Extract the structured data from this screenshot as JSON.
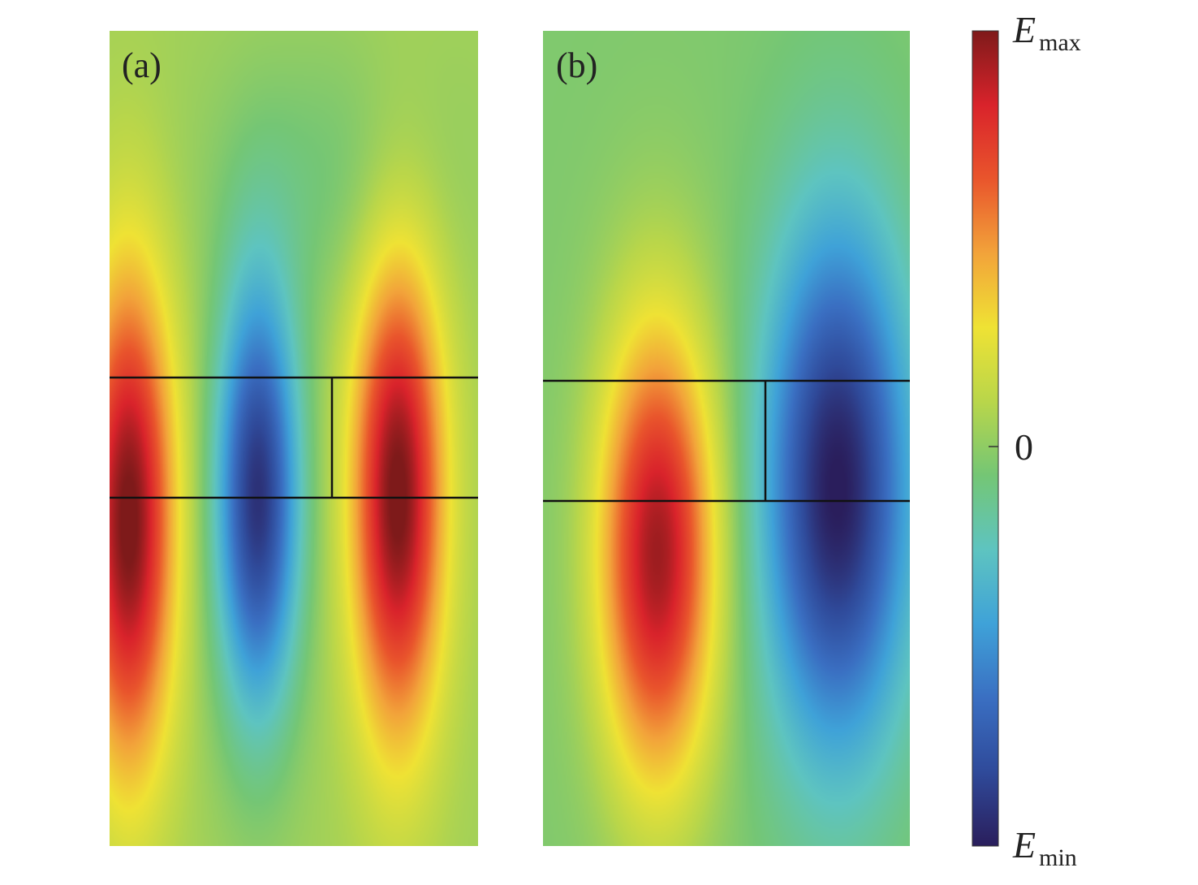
{
  "chart_data": {
    "type": "heatmap",
    "title": "",
    "quantity": "E",
    "colormap": [
      "#2a1e5c",
      "#2f4a9a",
      "#3a6fc2",
      "#3fa2d8",
      "#5ec4c0",
      "#74c675",
      "#b9d64a",
      "#efe234",
      "#f2a33a",
      "#e9552c",
      "#d9232b",
      "#7e1a1a"
    ],
    "colorbar": {
      "ticks": [
        {
          "label_main": "E",
          "label_sub": "max",
          "value": "E_max"
        },
        {
          "label_main": "0",
          "label_sub": "",
          "value": 0
        },
        {
          "label_main": "E",
          "label_sub": "min",
          "value": "E_min"
        }
      ]
    },
    "panels": [
      {
        "label": "(a)",
        "background_level": 0.03,
        "lobes": [
          {
            "x": 0.05,
            "y": 0.6,
            "sx": 0.13,
            "sy": 0.32,
            "amp": 1.0
          },
          {
            "x": 0.4,
            "y": 0.57,
            "sx": 0.12,
            "sy": 0.28,
            "amp": -0.95
          },
          {
            "x": 0.78,
            "y": 0.57,
            "sx": 0.13,
            "sy": 0.31,
            "amp": 1.0
          },
          {
            "x": 0.6,
            "y": 0.18,
            "sx": 0.35,
            "sy": 0.18,
            "amp": -0.12
          }
        ]
      },
      {
        "label": "(b)",
        "background_level": -0.06,
        "lobes": [
          {
            "x": 0.31,
            "y": 0.64,
            "sx": 0.17,
            "sy": 0.3,
            "amp": 1.0
          },
          {
            "x": 0.8,
            "y": 0.56,
            "sx": 0.21,
            "sy": 0.34,
            "amp": -0.95
          }
        ]
      }
    ]
  }
}
